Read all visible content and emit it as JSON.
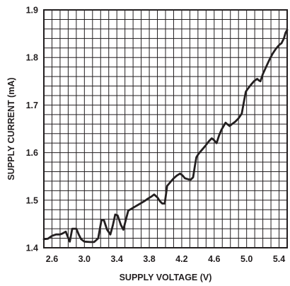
{
  "chart_data": {
    "type": "line",
    "xlabel": "SUPPLY VOLTAGE (V)",
    "ylabel": "SUPPLY CURRENT (mA)",
    "xlim": [
      2.5,
      5.5
    ],
    "ylim": [
      1.4,
      1.9
    ],
    "x_ticks": [
      "2.6",
      "3.0",
      "3.4",
      "3.8",
      "4.2",
      "4.6",
      "5.0",
      "5.4"
    ],
    "y_ticks": [
      "1.4",
      "1.5",
      "1.6",
      "1.7",
      "1.8",
      "1.9"
    ],
    "x_tick_values": [
      2.6,
      3.0,
      3.4,
      3.8,
      4.2,
      4.6,
      5.0,
      5.4
    ],
    "y_tick_values": [
      1.4,
      1.5,
      1.6,
      1.7,
      1.8,
      1.9
    ],
    "x_minor_step": 0.1,
    "y_minor_step": 0.02,
    "grid": true,
    "line_color": "#231f20",
    "series": [
      {
        "x": [
          2.5,
          2.55,
          2.6,
          2.65,
          2.7,
          2.73,
          2.77,
          2.79,
          2.82,
          2.85,
          2.9,
          2.93,
          2.96,
          3.0,
          3.07,
          3.12,
          3.17,
          3.21,
          3.24,
          3.28,
          3.32,
          3.35,
          3.38,
          3.41,
          3.45,
          3.48,
          3.51,
          3.54,
          3.58,
          3.62,
          3.66,
          3.7,
          3.74,
          3.78,
          3.82,
          3.86,
          3.9,
          3.93,
          3.96,
          3.99,
          4.02,
          4.05,
          4.07,
          4.1,
          4.14,
          4.18,
          4.21,
          4.24,
          4.28,
          4.31,
          4.34,
          4.36,
          4.38,
          4.41,
          4.45,
          4.49,
          4.53,
          4.57,
          4.6,
          4.63,
          4.66,
          4.69,
          4.72,
          4.74,
          4.76,
          4.79,
          4.82,
          4.86,
          4.9,
          4.94,
          4.97,
          4.99,
          5.01,
          5.05,
          5.09,
          5.13,
          5.15,
          5.17,
          5.2,
          5.24,
          5.28,
          5.32,
          5.36,
          5.4,
          5.43,
          5.46,
          5.48,
          5.5
        ],
        "y": [
          1.418,
          1.419,
          1.425,
          1.428,
          1.428,
          1.43,
          1.434,
          1.425,
          1.413,
          1.44,
          1.44,
          1.428,
          1.418,
          1.413,
          1.412,
          1.412,
          1.42,
          1.458,
          1.458,
          1.438,
          1.428,
          1.447,
          1.47,
          1.468,
          1.448,
          1.438,
          1.458,
          1.478,
          1.482,
          1.486,
          1.49,
          1.494,
          1.498,
          1.503,
          1.507,
          1.512,
          1.506,
          1.498,
          1.493,
          1.493,
          1.53,
          1.536,
          1.54,
          1.546,
          1.552,
          1.556,
          1.552,
          1.546,
          1.544,
          1.543,
          1.548,
          1.57,
          1.59,
          1.598,
          1.606,
          1.614,
          1.623,
          1.63,
          1.626,
          1.62,
          1.636,
          1.648,
          1.657,
          1.663,
          1.66,
          1.656,
          1.66,
          1.665,
          1.672,
          1.682,
          1.71,
          1.728,
          1.733,
          1.742,
          1.75,
          1.755,
          1.752,
          1.75,
          1.765,
          1.78,
          1.795,
          1.808,
          1.818,
          1.826,
          1.83,
          1.84,
          1.852,
          1.858
        ]
      }
    ]
  }
}
